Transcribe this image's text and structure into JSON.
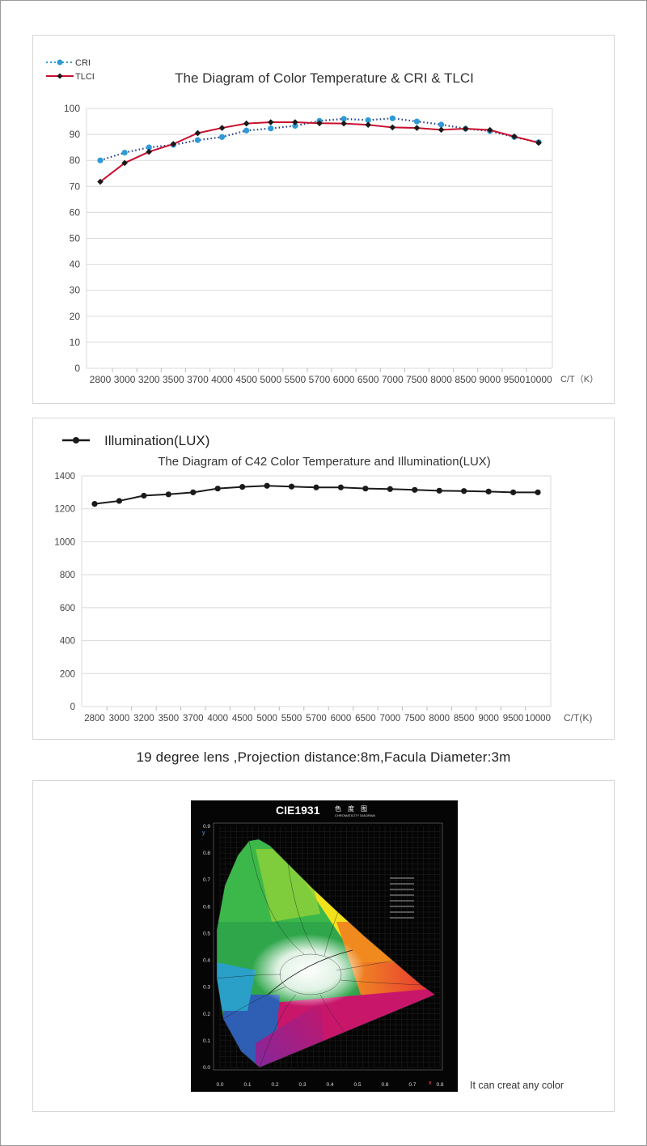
{
  "chart_data": [
    {
      "type": "line",
      "title": "The Diagram of  Color Temperature & CRI & TLCI",
      "categories": [
        "2800",
        "3000",
        "3200",
        "3500",
        "3700",
        "4000",
        "4500",
        "5000",
        "5500",
        "5700",
        "6000",
        "6500",
        "7000",
        "7500",
        "8000",
        "8500",
        "9000",
        "9500",
        "10000"
      ],
      "xlabel": "C/T（K）",
      "ylim": [
        0,
        100
      ],
      "yticks": [
        0,
        10,
        20,
        30,
        40,
        50,
        60,
        70,
        80,
        90,
        100
      ],
      "grid": true,
      "legend_position": "top-left",
      "series": [
        {
          "name": "CRI",
          "color": "#2e9bd6",
          "style": "dotted",
          "marker": "circle",
          "values": [
            80,
            83,
            85,
            86,
            87.8,
            89,
            91.5,
            92.3,
            93.3,
            95.2,
            96,
            95.5,
            96.2,
            95,
            93.8,
            92.2,
            91.3,
            89,
            87
          ]
        },
        {
          "name": "TLCI",
          "color": "#c8102e",
          "style": "solid",
          "marker": "diamond",
          "values": [
            71.8,
            79,
            83.3,
            86.3,
            90.5,
            92.5,
            94.2,
            94.7,
            94.7,
            94.3,
            94.2,
            93.7,
            92.7,
            92.5,
            91.8,
            92.2,
            91.7,
            89.2,
            86.8
          ]
        }
      ]
    },
    {
      "type": "line",
      "title": "The Diagram of C42 Color Temperature and Illumination(LUX)",
      "categories": [
        "2800",
        "3000",
        "3200",
        "3500",
        "3700",
        "4000",
        "4500",
        "5000",
        "5500",
        "5700",
        "6000",
        "6500",
        "7000",
        "7500",
        "8000",
        "8500",
        "9000",
        "9500",
        "10000"
      ],
      "xlabel": "C/T(K)",
      "ylim": [
        0,
        1400
      ],
      "yticks": [
        0,
        200,
        400,
        600,
        800,
        1000,
        1200,
        1400
      ],
      "grid": true,
      "legend_position": "top-left",
      "series": [
        {
          "name": "Illumination(LUX)",
          "color": "#1a1a1a",
          "marker": "circle",
          "values": [
            1230,
            1248,
            1280,
            1288,
            1300,
            1323,
            1333,
            1340,
            1335,
            1330,
            1330,
            1323,
            1320,
            1315,
            1310,
            1308,
            1305,
            1300,
            1300
          ]
        }
      ]
    }
  ],
  "caption": "19 degree lens ,Projection distance:8m,Facula Diameter:3m",
  "cie": {
    "title": "CIE1931",
    "title_cn": "色　度　图",
    "title_en": "CHROMATICITY DIAGRAM",
    "x_ticks": [
      "0.0",
      "0.1",
      "0.2",
      "0.3",
      "0.4",
      "0.5",
      "0.6",
      "0.7",
      "0.8"
    ],
    "y_ticks": [
      "0.0",
      "0.1",
      "0.2",
      "0.3",
      "0.4",
      "0.5",
      "0.6",
      "0.7",
      "0.8",
      "0.9"
    ],
    "x_axis": "x",
    "y_axis": "y"
  },
  "note": "It can creat any color"
}
